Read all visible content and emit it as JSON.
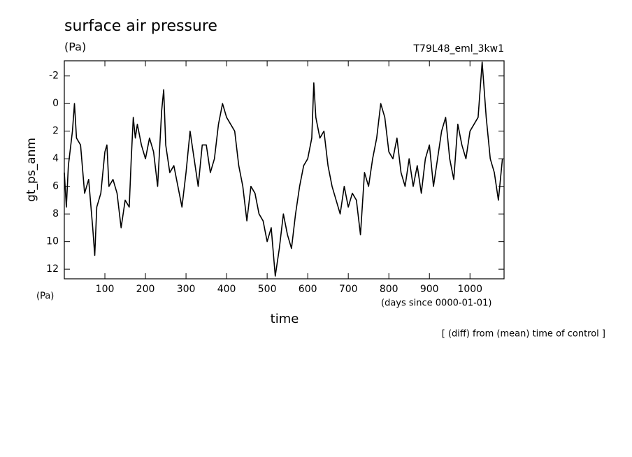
{
  "chart_data": {
    "type": "line",
    "title": "surface air pressure",
    "y_units": "(Pa)",
    "experiment": "T79L48_eml_3kw1",
    "ylabel": "gt_ps_anm",
    "corner_units": "(Pa)",
    "x_units": "(days since 0000-01-01)",
    "xlabel": "time",
    "note": "[ (diff) from (mean) time of control ]",
    "color": "#000000",
    "x": [
      0,
      5,
      10,
      20,
      25,
      30,
      40,
      50,
      60,
      70,
      75,
      80,
      90,
      100,
      105,
      110,
      120,
      130,
      140,
      150,
      160,
      165,
      170,
      175,
      180,
      190,
      200,
      210,
      220,
      230,
      240,
      245,
      250,
      260,
      270,
      280,
      290,
      300,
      310,
      320,
      330,
      340,
      350,
      360,
      370,
      380,
      390,
      400,
      410,
      420,
      430,
      440,
      450,
      460,
      470,
      480,
      490,
      500,
      510,
      520,
      530,
      540,
      550,
      560,
      570,
      580,
      590,
      600,
      610,
      615,
      620,
      630,
      640,
      650,
      660,
      670,
      680,
      690,
      700,
      710,
      720,
      730,
      740,
      750,
      760,
      770,
      780,
      790,
      800,
      810,
      820,
      830,
      840,
      850,
      860,
      870,
      880,
      890,
      900,
      910,
      920,
      930,
      940,
      950,
      960,
      970,
      980,
      990,
      1000,
      1010,
      1020,
      1030,
      1040,
      1050,
      1060,
      1070,
      1080
    ],
    "values": [
      5,
      7.5,
      4.5,
      2,
      0,
      2.5,
      3,
      6.5,
      5.5,
      9,
      11,
      7.5,
      6.5,
      3.5,
      3,
      6,
      5.5,
      6.5,
      9,
      7,
      7.5,
      4,
      1,
      2.5,
      1.5,
      3,
      4,
      2.5,
      3.5,
      6,
      0.5,
      -1,
      3,
      5,
      4.5,
      6,
      7.5,
      5,
      2,
      4,
      6,
      3,
      3,
      5,
      4,
      1.5,
      0,
      1,
      1.5,
      2,
      4.5,
      6,
      8.5,
      6,
      6.5,
      8,
      8.5,
      10,
      9,
      12.5,
      10.5,
      8,
      9.5,
      10.5,
      8,
      6,
      4.5,
      4,
      2.5,
      -1.5,
      1,
      2.5,
      2,
      4.5,
      6,
      7,
      8,
      6,
      7.5,
      6.5,
      7,
      9.5,
      5,
      6,
      4,
      2.5,
      0,
      1,
      3.5,
      4,
      2.5,
      5,
      6,
      4,
      6,
      4.5,
      6.5,
      4,
      3,
      6,
      4,
      2,
      1,
      4,
      5.5,
      1.5,
      3,
      4,
      2,
      1.5,
      1,
      -3,
      1,
      4,
      5,
      7,
      4
    ],
    "xlim": [
      0,
      1084
    ],
    "ylim": [
      12.7,
      -3.1
    ],
    "xticks": [
      100,
      200,
      300,
      400,
      500,
      600,
      700,
      800,
      900,
      1000
    ],
    "yticks": [
      -2,
      0,
      2,
      4,
      6,
      8,
      10,
      12
    ]
  }
}
